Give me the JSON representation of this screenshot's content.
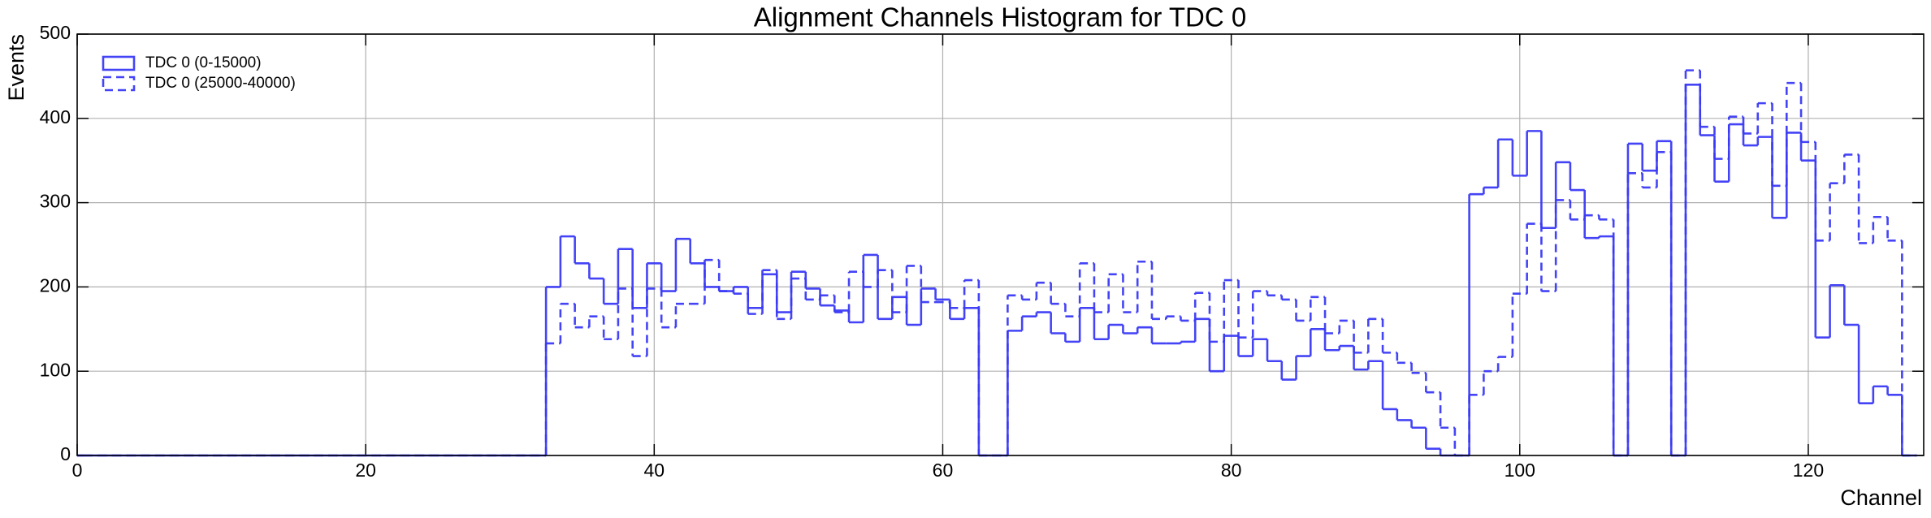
{
  "chart_data": {
    "type": "histogram",
    "title": "Alignment Channels Histogram for TDC 0",
    "xlabel": "Channel",
    "ylabel": "Events",
    "bins": [
      -0.5,
      0.5,
      1.5,
      2.5,
      3.5,
      4.5,
      5.5,
      6.5,
      7.5,
      8.5,
      9.5,
      10.5,
      11.5,
      12.5,
      13.5,
      14.5,
      15.5,
      16.5,
      17.5,
      18.5,
      19.5,
      20.5,
      21.5,
      22.5,
      23.5,
      24.5,
      25.5,
      26.5,
      27.5,
      28.5,
      29.5,
      30.5,
      31.5,
      32.5,
      33.5,
      34.5,
      35.5,
      36.5,
      37.5,
      38.5,
      39.5,
      40.5,
      41.5,
      42.5,
      43.5,
      44.5,
      45.5,
      46.5,
      47.5,
      48.5,
      49.5,
      50.5,
      51.5,
      52.5,
      53.5,
      54.5,
      55.5,
      56.5,
      57.5,
      58.5,
      59.5,
      60.5,
      61.5,
      62.5,
      63.5,
      64.5,
      65.5,
      66.5,
      67.5,
      68.5,
      69.5,
      70.5,
      71.5,
      72.5,
      73.5,
      74.5,
      75.5,
      76.5,
      77.5,
      78.5,
      79.5,
      80.5,
      81.5,
      82.5,
      83.5,
      84.5,
      85.5,
      86.5,
      87.5,
      88.5,
      89.5,
      90.5,
      91.5,
      92.5,
      93.5,
      94.5,
      95.5,
      96.5,
      97.5,
      98.5,
      99.5,
      100.5,
      101.5,
      102.5,
      103.5,
      104.5,
      105.5,
      106.5,
      107.5,
      108.5,
      109.5,
      110.5,
      111.5,
      112.5,
      113.5,
      114.5,
      115.5,
      116.5,
      117.5,
      118.5,
      119.5,
      120.5,
      121.5,
      122.5,
      123.5,
      124.5,
      125.5,
      126.5,
      127.5
    ],
    "series": [
      {
        "name": "TDC 0 (0-15000)",
        "color": "#3a3af5",
        "dash": false,
        "values": [
          0,
          0,
          0,
          0,
          0,
          0,
          0,
          0,
          0,
          0,
          0,
          0,
          0,
          0,
          0,
          0,
          0,
          0,
          0,
          0,
          0,
          0,
          0,
          0,
          0,
          0,
          0,
          0,
          0,
          0,
          0,
          0,
          0,
          200,
          260,
          228,
          210,
          180,
          245,
          175,
          228,
          195,
          257,
          228,
          200,
          195,
          200,
          175,
          215,
          170,
          218,
          198,
          178,
          172,
          158,
          238,
          162,
          188,
          155,
          198,
          185,
          162,
          175,
          0,
          0,
          148,
          165,
          170,
          145,
          135,
          175,
          138,
          155,
          145,
          152,
          133,
          133,
          135,
          162,
          100,
          142,
          118,
          138,
          112,
          90,
          118,
          150,
          125,
          130,
          102,
          112,
          55,
          42,
          33,
          8,
          0,
          0,
          310,
          318,
          375,
          332,
          385,
          270,
          348,
          315,
          258,
          260,
          0,
          370,
          338,
          373,
          0,
          440,
          380,
          325,
          393,
          368,
          378,
          282,
          383,
          350,
          140,
          202,
          155,
          62,
          82,
          72,
          0
        ]
      },
      {
        "name": "TDC 0 (25000-40000)",
        "color": "#3a3af5",
        "dash": true,
        "values": [
          0,
          0,
          0,
          0,
          0,
          0,
          0,
          0,
          0,
          0,
          0,
          0,
          0,
          0,
          0,
          0,
          0,
          0,
          0,
          0,
          0,
          0,
          0,
          0,
          0,
          0,
          0,
          0,
          0,
          0,
          0,
          0,
          0,
          133,
          180,
          152,
          165,
          138,
          198,
          118,
          198,
          152,
          180,
          180,
          232,
          195,
          192,
          168,
          220,
          162,
          210,
          185,
          190,
          170,
          218,
          200,
          220,
          170,
          225,
          182,
          182,
          175,
          208,
          0,
          0,
          190,
          185,
          205,
          180,
          165,
          228,
          170,
          215,
          170,
          230,
          162,
          165,
          160,
          193,
          135,
          208,
          140,
          195,
          190,
          185,
          160,
          188,
          145,
          160,
          122,
          162,
          122,
          110,
          98,
          75,
          33,
          0,
          72,
          100,
          117,
          192,
          275,
          195,
          303,
          280,
          285,
          280,
          0,
          335,
          318,
          360,
          0,
          457,
          390,
          352,
          402,
          382,
          418,
          320,
          442,
          372,
          255,
          323,
          357,
          252,
          283,
          255,
          0
        ]
      }
    ],
    "xlim": [
      0,
      128
    ],
    "xticks": [
      0,
      20,
      40,
      60,
      80,
      100,
      120
    ],
    "ylim": [
      0,
      500
    ],
    "yticks": [
      0,
      100,
      200,
      300,
      400,
      500
    ],
    "grid": true,
    "legend": "upper left"
  }
}
